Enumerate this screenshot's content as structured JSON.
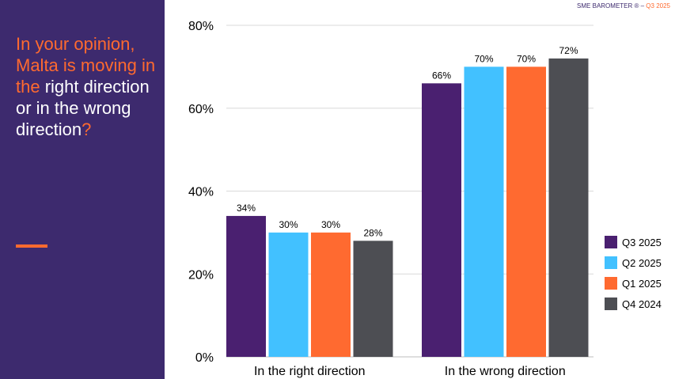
{
  "question": {
    "part1": "In your opinion, Malta is moving in the",
    "part2": " right direction or in the wrong direction",
    "part3": "?"
  },
  "brand": {
    "label": "SME BAROMETER ® – ",
    "period": "Q3 2025"
  },
  "colors": {
    "sidebar": "#3d2a6e",
    "accent": "#ff6a2f"
  },
  "chart_data": {
    "type": "bar",
    "categories": [
      "In the right direction",
      "In the wrong direction"
    ],
    "series": [
      {
        "name": "Q3 2025",
        "values": [
          34,
          66
        ],
        "labels": [
          "34%",
          "66%"
        ],
        "color": "#4a2070"
      },
      {
        "name": "Q2 2025",
        "values": [
          30,
          70
        ],
        "labels": [
          "30%",
          "70%"
        ],
        "color": "#42c1ff"
      },
      {
        "name": "Q1 2025",
        "values": [
          30,
          70
        ],
        "labels": [
          "30%",
          "70%"
        ],
        "color": "#ff6a30"
      },
      {
        "name": "Q4 2024",
        "values": [
          28,
          72
        ],
        "labels": [
          "28%",
          "72%"
        ],
        "color": "#4d4e53"
      }
    ],
    "yticks": [
      "0%",
      "20%",
      "40%",
      "60%",
      "80%"
    ],
    "ylim": [
      0,
      80
    ],
    "grid": true,
    "legend": "right"
  }
}
